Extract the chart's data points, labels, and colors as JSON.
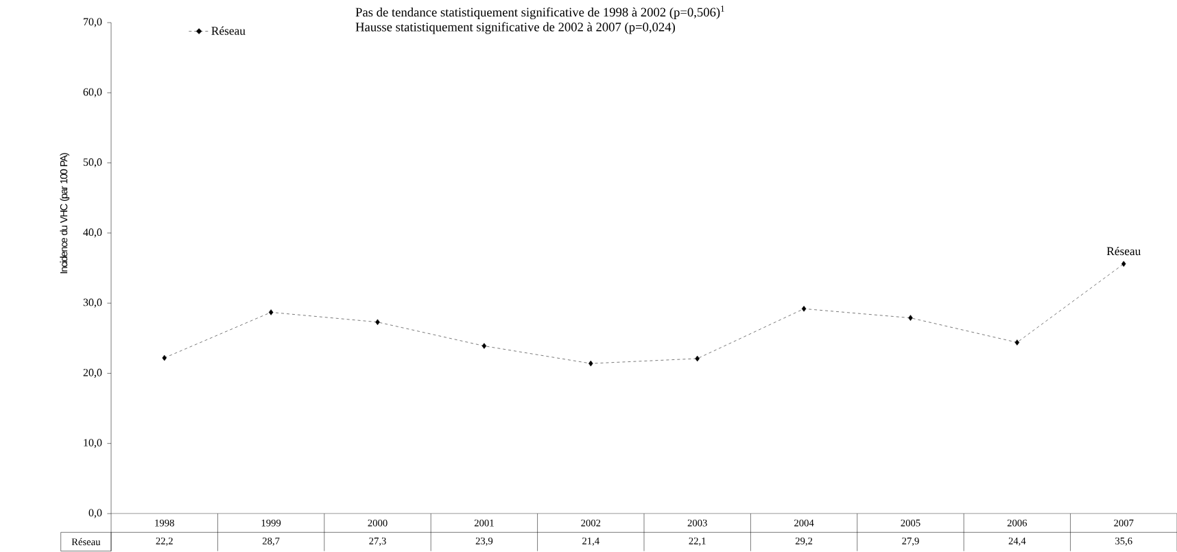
{
  "chart_data": {
    "type": "line",
    "ylabel": "Incidence du VHC (par 100 PA)",
    "categories": [
      "1998",
      "1999",
      "2000",
      "2001",
      "2002",
      "2003",
      "2004",
      "2005",
      "2006",
      "2007"
    ],
    "series": [
      {
        "name": "Réseau",
        "color": "#000000",
        "values": [
          22.2,
          28.7,
          27.3,
          23.9,
          21.4,
          22.1,
          29.2,
          27.9,
          24.4,
          35.6
        ],
        "value_labels": [
          "22,2",
          "28,7",
          "27,3",
          "23,9",
          "21,4",
          "22,1",
          "29,2",
          "27,9",
          "24,4",
          "35,6"
        ]
      }
    ],
    "ylim": [
      0,
      70
    ],
    "yticks": [
      {
        "value": 0,
        "label": "0,0"
      },
      {
        "value": 10,
        "label": "10,0"
      },
      {
        "value": 20,
        "label": "20,0"
      },
      {
        "value": 30,
        "label": "30,0"
      },
      {
        "value": 40,
        "label": "40,0"
      },
      {
        "value": 50,
        "label": "50,0"
      },
      {
        "value": 60,
        "label": "60,0"
      },
      {
        "value": 70,
        "label": "70,0"
      }
    ],
    "annotations": [
      "Pas de tendance statistiquement significative de 1998 à 2002 (p=0,506)$^{1}$",
      "Hausse statistiquement significative de 2002 à 2007 (p=0,024)"
    ],
    "legend": "top left",
    "marker": "diamond",
    "line_style": "dashed",
    "grid": false
  }
}
